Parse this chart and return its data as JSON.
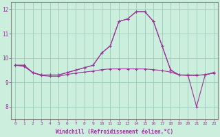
{
  "title": "",
  "xlabel": "Windchill (Refroidissement éolien,°C)",
  "ylabel": "",
  "background_color": "#cceedd",
  "grid_color": "#99ccbb",
  "line_color": "#993399",
  "spine_color": "#888888",
  "xlim": [
    -0.5,
    23.5
  ],
  "ylim": [
    7.5,
    12.3
  ],
  "yticks": [
    8,
    9,
    10,
    11,
    12
  ],
  "xticks": [
    0,
    1,
    2,
    3,
    4,
    5,
    6,
    7,
    8,
    9,
    10,
    11,
    12,
    13,
    14,
    15,
    16,
    17,
    18,
    19,
    20,
    21,
    22,
    23
  ],
  "line1_x": [
    0,
    1,
    2,
    3,
    4,
    5,
    6,
    7,
    8,
    9,
    10,
    11,
    12,
    13,
    14,
    15,
    16,
    17,
    18,
    19,
    20,
    21,
    22,
    23
  ],
  "line1_y": [
    9.7,
    9.7,
    9.4,
    9.3,
    9.3,
    9.3,
    9.4,
    9.5,
    9.6,
    9.7,
    10.2,
    10.5,
    11.5,
    11.6,
    11.9,
    11.9,
    11.5,
    10.5,
    9.5,
    9.3,
    9.3,
    8.0,
    9.3,
    9.4
  ],
  "line2_x": [
    0,
    1,
    2,
    3,
    4,
    5,
    6,
    7,
    8,
    9,
    10,
    11,
    12,
    13,
    14,
    15,
    16,
    17,
    18,
    19,
    20,
    21,
    22,
    23
  ],
  "line2_y": [
    9.7,
    9.7,
    9.4,
    9.3,
    9.3,
    9.3,
    9.4,
    9.5,
    9.6,
    9.7,
    10.2,
    10.5,
    11.5,
    11.6,
    11.9,
    11.9,
    11.5,
    10.5,
    9.5,
    9.3,
    9.3,
    9.3,
    9.3,
    9.4
  ],
  "line3_x": [
    0,
    1,
    2,
    3,
    4,
    5,
    6,
    7,
    8,
    9,
    10,
    11,
    12,
    13,
    14,
    15,
    16,
    17,
    18,
    19,
    20,
    21,
    22,
    23
  ],
  "line3_y": [
    9.7,
    9.65,
    9.4,
    9.28,
    9.25,
    9.25,
    9.32,
    9.38,
    9.42,
    9.46,
    9.52,
    9.55,
    9.55,
    9.55,
    9.55,
    9.55,
    9.52,
    9.48,
    9.42,
    9.3,
    9.28,
    9.28,
    9.32,
    9.38
  ]
}
